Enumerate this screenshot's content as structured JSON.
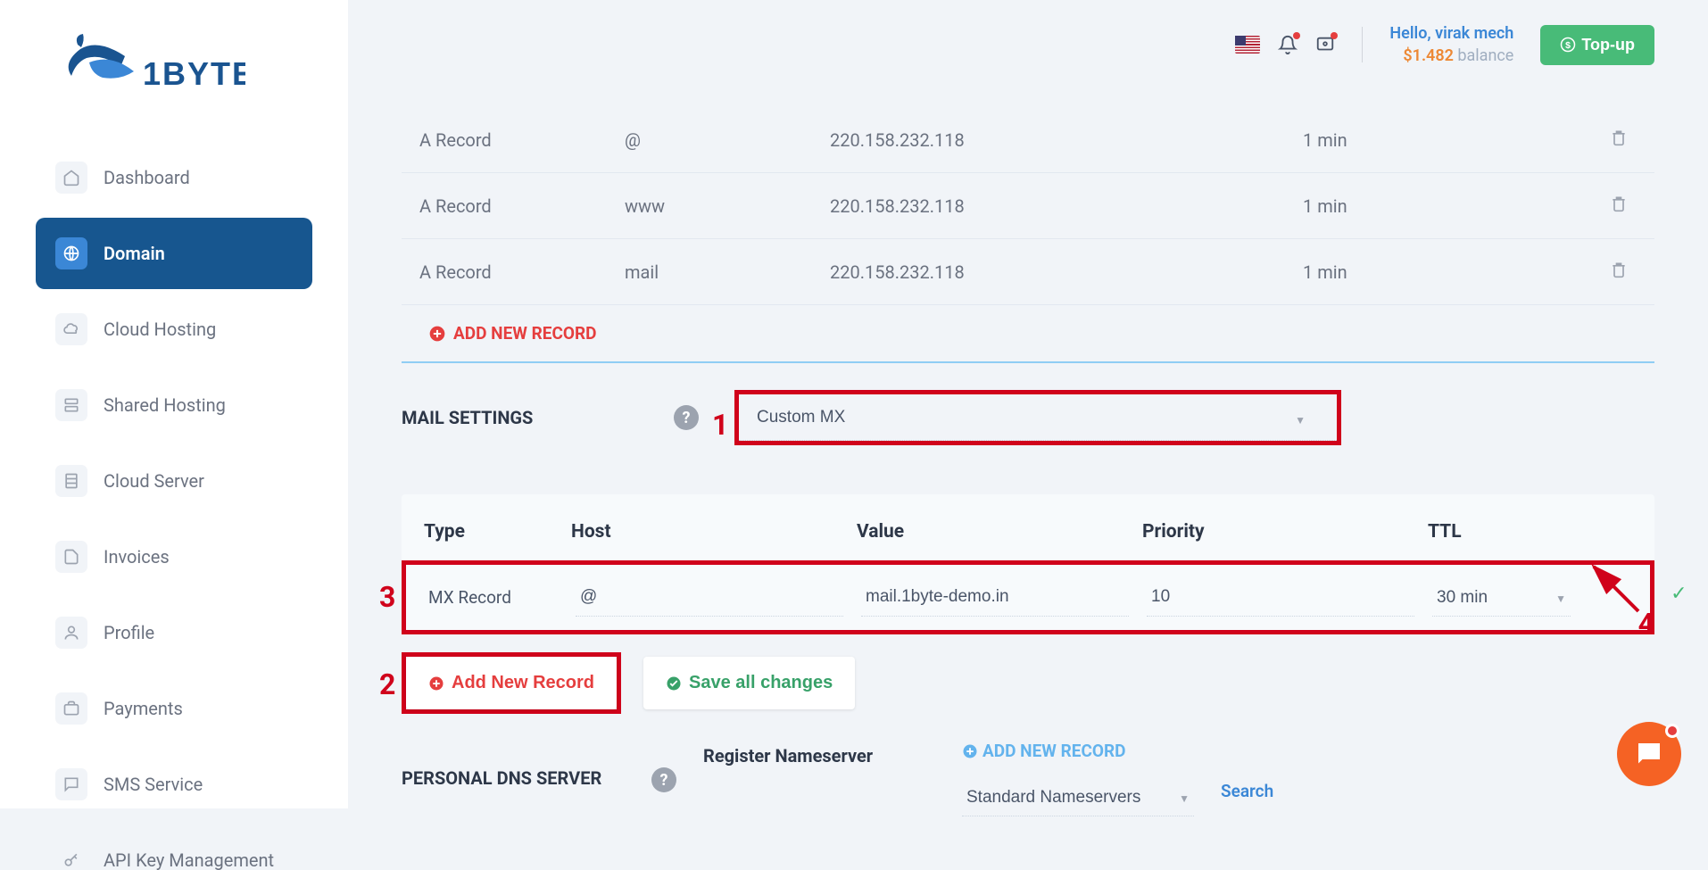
{
  "brand": {
    "name": "1BYTE"
  },
  "sidebar": {
    "items": [
      {
        "label": "Dashboard",
        "icon": "home"
      },
      {
        "label": "Domain",
        "icon": "globe",
        "active": true
      },
      {
        "label": "Cloud Hosting",
        "icon": "cloud"
      },
      {
        "label": "Shared Hosting",
        "icon": "server-stack"
      },
      {
        "label": "Cloud Server",
        "icon": "rack"
      },
      {
        "label": "Invoices",
        "icon": "file"
      },
      {
        "label": "Profile",
        "icon": "user"
      },
      {
        "label": "Payments",
        "icon": "briefcase"
      },
      {
        "label": "SMS Service",
        "icon": "chat"
      },
      {
        "label": "API Key Management",
        "icon": "key"
      }
    ]
  },
  "topbar": {
    "greeting_prefix": "Hello, ",
    "user_name": "virak mech",
    "balance_amount": "$1.482",
    "balance_label": "balance",
    "topup_label": "Top-up",
    "flag": "us"
  },
  "dns": {
    "records": [
      {
        "type": "A Record",
        "host": "@",
        "value": "220.158.232.118",
        "ttl": "1 min"
      },
      {
        "type": "A Record",
        "host": "www",
        "value": "220.158.232.118",
        "ttl": "1 min"
      },
      {
        "type": "A Record",
        "host": "mail",
        "value": "220.158.232.118",
        "ttl": "1 min"
      }
    ],
    "add_label": "ADD NEW RECORD"
  },
  "mail": {
    "section_label": "MAIL SETTINGS",
    "selected": "Custom MX",
    "headers": {
      "type": "Type",
      "host": "Host",
      "value": "Value",
      "priority": "Priority",
      "ttl": "TTL"
    },
    "row": {
      "type": "MX Record",
      "host": "@",
      "value": "mail.1byte-demo.in",
      "priority": "10",
      "ttl": "30 min"
    },
    "add_label": "Add New Record",
    "save_label": "Save all changes"
  },
  "dns_server": {
    "section_label": "PERSONAL DNS SERVER",
    "register_label": "Register Nameserver",
    "add_label": "ADD NEW RECORD",
    "selected": "Standard Nameservers",
    "search_label": "Search"
  },
  "annotations": {
    "a1": "1",
    "a2": "2",
    "a3": "3",
    "a4": "4",
    "box_color": "#d0021b"
  },
  "colors": {
    "sidebar_active_bg": "#17568f",
    "accent_blue": "#3b87d6",
    "accent_green": "#48bb78",
    "accent_red": "#e53e3e",
    "accent_orange": "#ed8936",
    "chat_fab": "#f56224",
    "body_bg": "#f1f4f8",
    "text_muted": "#6b7280",
    "light_blue": "#63b3ed"
  }
}
